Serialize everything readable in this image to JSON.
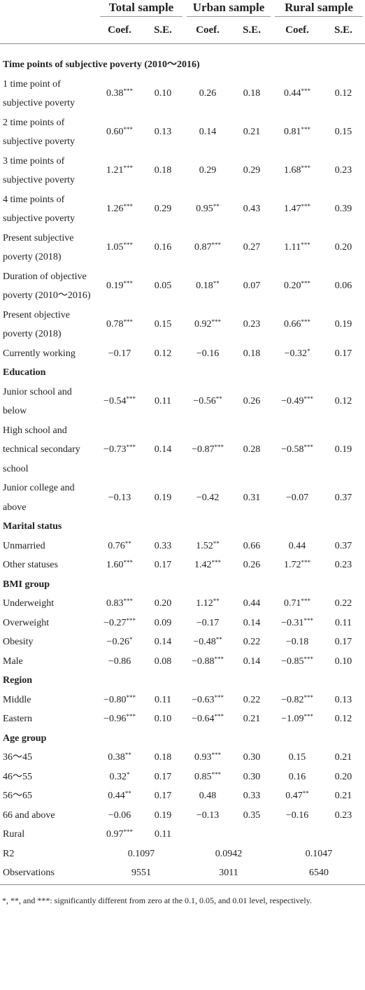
{
  "table": {
    "groups": [
      "Total sample",
      "Urban sample",
      "Rural sample"
    ],
    "subheaders": [
      "Coef.",
      "S.E.",
      "Coef.",
      "S.E.",
      "Coef.",
      "S.E."
    ],
    "rows": [
      [
        "Time points of subjective poverty (2010～2016)"
      ],
      [
        "1 time point of subjective poverty",
        "0.38***",
        "0.10",
        "0.26",
        "0.18",
        "0.44***",
        "0.12"
      ],
      [
        "2 time points of subjective poverty",
        "0.60***",
        "0.13",
        "0.14",
        "0.21",
        "0.81***",
        "0.15"
      ],
      [
        "3 time points of subjective poverty",
        "1.21***",
        "0.18",
        "0.29",
        "0.29",
        "1.68***",
        "0.23"
      ],
      [
        "4 time points of subjective poverty",
        "1.26***",
        "0.29",
        "0.95**",
        "0.43",
        "1.47***",
        "0.39"
      ],
      [
        "Present subjective poverty (2018)",
        "1.05***",
        "0.16",
        "0.87***",
        "0.27",
        "1.11***",
        "0.20"
      ],
      [
        "Duration of objective poverty (2010～2016)",
        "0.19***",
        "0.05",
        "0.18**",
        "0.07",
        "0.20***",
        "0.06"
      ],
      [
        "Present objective poverty (2018)",
        "0.78***",
        "0.15",
        "0.92***",
        "0.23",
        "0.66***",
        "0.19"
      ],
      [
        "Currently working",
        "−0.17",
        "0.12",
        "−0.16",
        "0.18",
        "−0.32*",
        "0.17"
      ],
      [
        "Education"
      ],
      [
        "Junior school and below",
        "−0.54***",
        "0.11",
        "−0.56**",
        "0.26",
        "−0.49***",
        "0.12"
      ],
      [
        "High school and technical secondary school",
        "−0.73***",
        "0.14",
        "−0.87***",
        "0.28",
        "−0.58***",
        "0.19"
      ],
      [
        "Junior college and above",
        "−0.13",
        "0.19",
        "−0.42",
        "0.31",
        "−0.07",
        "0.37"
      ],
      [
        "Marital status"
      ],
      [
        "Unmarried",
        "0.76**",
        "0.33",
        "1.52**",
        "0.66",
        "0.44",
        "0.37"
      ],
      [
        "Other statuses",
        "1.60***",
        "0.17",
        "1.42***",
        "0.26",
        "1.72***",
        "0.23"
      ],
      [
        "BMI group"
      ],
      [
        "Underweight",
        "0.83***",
        "0.20",
        "1.12**",
        "0.44",
        "0.71***",
        "0.22"
      ],
      [
        "Overweight",
        "−0.27***",
        "0.09",
        "−0.17",
        "0.14",
        "−0.31***",
        "0.11"
      ],
      [
        "Obesity",
        "−0.26*",
        "0.14",
        "−0.48**",
        "0.22",
        "−0.18",
        "0.17"
      ],
      [
        "Male",
        "−0.86",
        "0.08",
        "−0.88***",
        "0.14",
        "−0.85***",
        "0.10"
      ],
      [
        "Region"
      ],
      [
        "Middle",
        "−0.80***",
        "0.11",
        "−0.63***",
        "0.22",
        "−0.82***",
        "0.13"
      ],
      [
        "Eastern",
        "−0.96***",
        "0.10",
        "−0.64***",
        "0.21",
        "−1.09***",
        "0.12"
      ],
      [
        "Age group"
      ],
      [
        "36～45",
        "0.38**",
        "0.18",
        "0.93***",
        "0.30",
        "0.15",
        "0.21"
      ],
      [
        "46～55",
        "0.32*",
        "0.17",
        "0.85***",
        "0.30",
        "0.16",
        "0.20"
      ],
      [
        "56～65",
        "0.44**",
        "0.17",
        "0.48",
        "0.33",
        "0.47**",
        "0.21"
      ],
      [
        "66 and above",
        "−0.06",
        "0.19",
        "−0.13",
        "0.35",
        "−0.16",
        "0.23"
      ],
      [
        "Rural",
        "0.97***",
        "0.11"
      ],
      [
        "R2",
        "0.1097",
        "0.0942",
        "0.1047"
      ],
      [
        "Observations",
        "9551",
        "3011",
        "6540"
      ]
    ],
    "note": "*, **, and ***: significantly different from zero at the 0.1, 0.05, and 0.01 level, respectively."
  }
}
